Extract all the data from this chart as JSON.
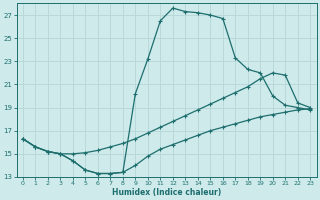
{
  "xlabel": "Humidex (Indice chaleur)",
  "x_ticks": [
    0,
    1,
    2,
    3,
    4,
    5,
    6,
    7,
    8,
    9,
    10,
    11,
    12,
    13,
    14,
    15,
    16,
    17,
    18,
    19,
    20,
    21,
    22,
    23
  ],
  "xlim": [
    -0.5,
    23.5
  ],
  "ylim": [
    13,
    28
  ],
  "y_ticks": [
    13,
    15,
    17,
    19,
    21,
    23,
    25,
    27
  ],
  "bg_color": "#ceeaeb",
  "grid_color": "#b8d8d9",
  "line_color": "#1e6e6e",
  "line1_y": [
    16.3,
    15.6,
    15.2,
    15.0,
    14.4,
    13.6,
    13.3,
    13.3,
    13.4,
    20.2,
    23.2,
    26.5,
    27.6,
    27.3,
    27.2,
    27.0,
    26.7,
    23.3,
    22.3,
    22.0,
    20.0,
    19.2,
    19.0,
    18.8
  ],
  "line2_y": [
    16.3,
    15.6,
    15.2,
    15.0,
    15.0,
    15.1,
    15.3,
    15.6,
    15.9,
    16.3,
    16.8,
    17.3,
    17.8,
    18.3,
    18.8,
    19.3,
    19.8,
    20.3,
    20.8,
    21.5,
    22.0,
    21.8,
    19.4,
    19.0
  ],
  "line3_y": [
    16.3,
    15.6,
    15.2,
    15.0,
    14.4,
    13.6,
    13.3,
    13.3,
    13.4,
    14.0,
    14.8,
    15.4,
    15.8,
    16.2,
    16.6,
    17.0,
    17.3,
    17.6,
    17.9,
    18.2,
    18.4,
    18.6,
    18.8,
    18.9
  ]
}
